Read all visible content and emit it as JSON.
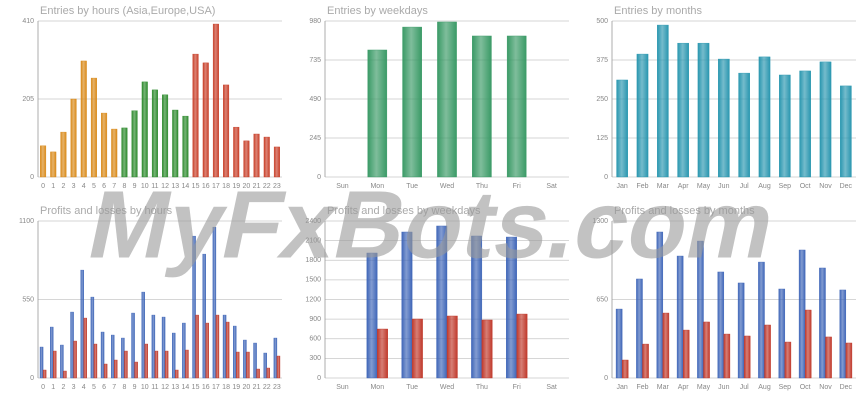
{
  "watermark": "MyFxBots.com",
  "chart_data": [
    {
      "type": "bar",
      "title": "Entries by hours (Asia,Europe,USA)",
      "categories": [
        "0",
        "1",
        "2",
        "3",
        "4",
        "5",
        "6",
        "7",
        "8",
        "9",
        "10",
        "11",
        "12",
        "13",
        "14",
        "15",
        "16",
        "17",
        "18",
        "19",
        "20",
        "21",
        "22",
        "23"
      ],
      "values": [
        82,
        66,
        118,
        205,
        305,
        260,
        168,
        126,
        129,
        174,
        250,
        229,
        216,
        176,
        160,
        323,
        300,
        402,
        242,
        131,
        95,
        113,
        105,
        79
      ],
      "colors": [
        "#d98a1a",
        "#d98a1a",
        "#d98a1a",
        "#d98a1a",
        "#d98a1a",
        "#d98a1a",
        "#d98a1a",
        "#d98a1a",
        "#2e8b2e",
        "#2e8b2e",
        "#2e8b2e",
        "#2e8b2e",
        "#2e8b2e",
        "#2e8b2e",
        "#2e8b2e",
        "#c8402a",
        "#c8402a",
        "#c8402a",
        "#c8402a",
        "#c8402a",
        "#c8402a",
        "#c8402a",
        "#c8402a",
        "#c8402a"
      ],
      "ylim": [
        0,
        410
      ],
      "yticks": [
        0,
        205,
        410
      ],
      "grid": true
    },
    {
      "type": "bar",
      "title": "Entries by weekdays",
      "categories": [
        "Sun",
        "Mon",
        "Tue",
        "Wed",
        "Thu",
        "Fri",
        "Sat"
      ],
      "values": [
        null,
        798,
        942,
        974,
        886,
        886,
        null
      ],
      "color": "#3a9a66",
      "ylim": [
        0,
        980
      ],
      "yticks": [
        0,
        245,
        490,
        735,
        980
      ],
      "grid": true
    },
    {
      "type": "bar",
      "title": "Entries by months",
      "categories": [
        "Jan",
        "Feb",
        "Mar",
        "Apr",
        "May",
        "Jun",
        "Jul",
        "Aug",
        "Sep",
        "Oct",
        "Nov",
        "Dec"
      ],
      "values": [
        311,
        394,
        487,
        429,
        429,
        378,
        333,
        385,
        327,
        340,
        369,
        292
      ],
      "color": "#2a97b0",
      "ylim": [
        0,
        500
      ],
      "yticks": [
        0,
        125,
        250,
        375,
        500
      ],
      "grid": true
    },
    {
      "type": "bar",
      "title": "Profits and losses by hours",
      "categories": [
        "0",
        "1",
        "2",
        "3",
        "4",
        "5",
        "6",
        "7",
        "8",
        "9",
        "10",
        "11",
        "12",
        "13",
        "14",
        "15",
        "16",
        "17",
        "18",
        "19",
        "20",
        "21",
        "22",
        "23"
      ],
      "series": [
        {
          "color": "#3f66b8",
          "values": [
            217,
            357,
            231,
            462,
            756,
            567,
            322,
            301,
            280,
            455,
            602,
            441,
            427,
            315,
            385,
            994,
            868,
            1057,
            441,
            364,
            266,
            245,
            175,
            280
          ]
        },
        {
          "color": "#c0392b",
          "values": [
            56,
            189,
            49,
            259,
            420,
            238,
            98,
            126,
            189,
            112,
            238,
            189,
            189,
            56,
            196,
            441,
            385,
            441,
            392,
            182,
            182,
            63,
            70,
            154
          ]
        }
      ],
      "ylim": [
        0,
        1100
      ],
      "yticks": [
        0,
        550,
        1100
      ],
      "grid": true
    },
    {
      "type": "bar",
      "title": "Profits and losses by weekdays",
      "categories": [
        "Sun",
        "Mon",
        "Tue",
        "Wed",
        "Thu",
        "Fri",
        "Sat"
      ],
      "series": [
        {
          "color": "#3f66b8",
          "values": [
            null,
            1911,
            2232,
            2324,
            2171,
            2155,
            null
          ]
        },
        {
          "color": "#c0392b",
          "values": [
            null,
            749,
            902,
            948,
            887,
            978,
            null
          ]
        }
      ],
      "ylim": [
        0,
        2400
      ],
      "yticks": [
        0,
        300,
        600,
        900,
        1200,
        1500,
        1800,
        2100,
        2400
      ],
      "grid": true
    },
    {
      "type": "bar",
      "title": "Profits and losses by months",
      "categories": [
        "Jan",
        "Feb",
        "Mar",
        "Apr",
        "May",
        "Jun",
        "Jul",
        "Aug",
        "Sep",
        "Oct",
        "Nov",
        "Dec"
      ],
      "series": [
        {
          "color": "#3f66b8",
          "values": [
            571,
            820,
            1209,
            1010,
            1134,
            878,
            787,
            960,
            737,
            1060,
            911,
            729
          ]
        },
        {
          "color": "#c0392b",
          "values": [
            149,
            281,
            538,
            397,
            464,
            364,
            348,
            439,
            298,
            563,
            340,
            290
          ]
        }
      ],
      "ylim": [
        0,
        1300
      ],
      "yticks": [
        0,
        650,
        1300
      ],
      "grid": true
    }
  ]
}
